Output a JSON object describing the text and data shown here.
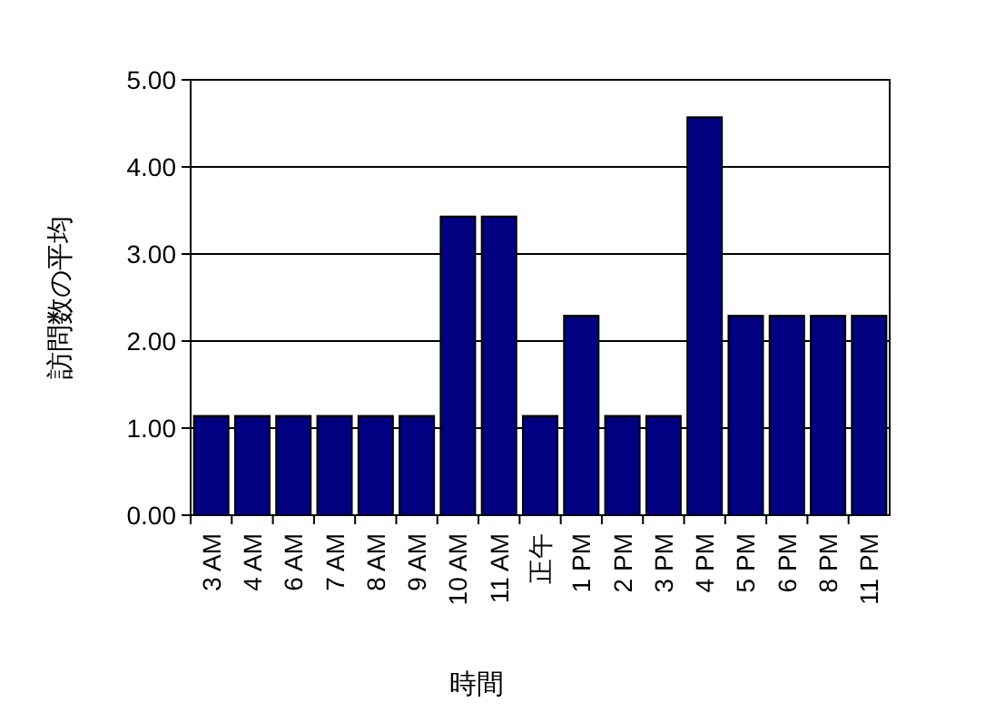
{
  "chart_data": {
    "type": "bar",
    "xlabel": "時間",
    "ylabel": "訪問数の平均",
    "categories": [
      "3 AM",
      "4 AM",
      "6 AM",
      "7 AM",
      "8 AM",
      "9 AM",
      "10 AM",
      "11 AM",
      "正午",
      "1 PM",
      "2 PM",
      "3 PM",
      "4 PM",
      "5 PM",
      "6 PM",
      "8 PM",
      "11 PM"
    ],
    "values": [
      1.14,
      1.14,
      1.14,
      1.14,
      1.14,
      1.14,
      3.43,
      3.43,
      1.14,
      2.29,
      1.14,
      1.14,
      4.57,
      2.29,
      2.29,
      2.29,
      2.29
    ],
    "color": "#000080",
    "ylim": [
      0,
      5
    ],
    "yticks": [
      {
        "value": 0,
        "label": "0.00"
      },
      {
        "value": 1,
        "label": "1.00"
      },
      {
        "value": 2,
        "label": "2.00"
      },
      {
        "value": 3,
        "label": "3.00"
      },
      {
        "value": 4,
        "label": "4.00"
      },
      {
        "value": 5,
        "label": "5.00"
      }
    ],
    "grid": "y"
  }
}
